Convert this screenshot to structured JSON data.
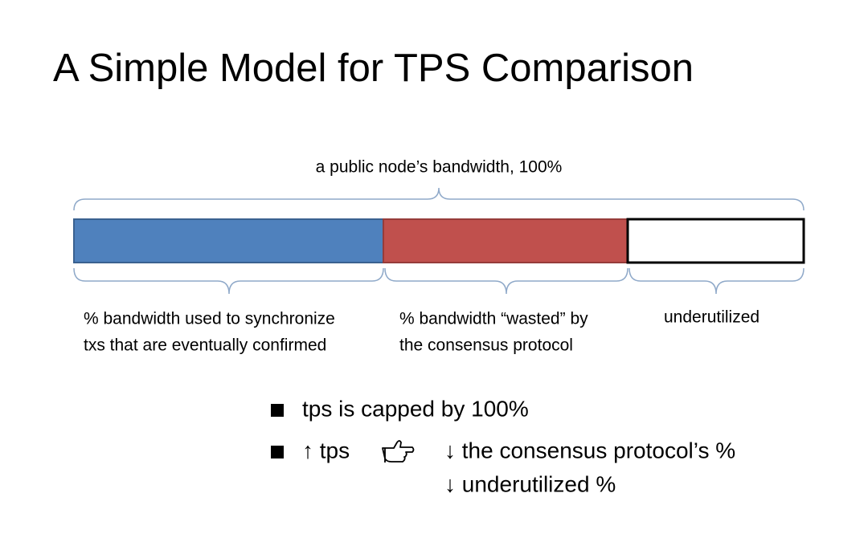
{
  "title": "A Simple Model for TPS Comparison",
  "total_label": "a public node’s bandwidth, 100%",
  "segments": [
    {
      "label_lines": [
        "% bandwidth used to synchronize",
        "txs that are eventually confirmed"
      ]
    },
    {
      "label_lines": [
        "% bandwidth “wasted” by",
        "the consensus protocol"
      ]
    },
    {
      "label_lines": [
        "underutilized"
      ]
    }
  ],
  "bullets": [
    {
      "text": "tps is capped by 100%"
    },
    {
      "lead": "↑ tps",
      "results": [
        "↓ the consensus protocol’s %",
        "↓ underutilized %"
      ]
    }
  ]
}
